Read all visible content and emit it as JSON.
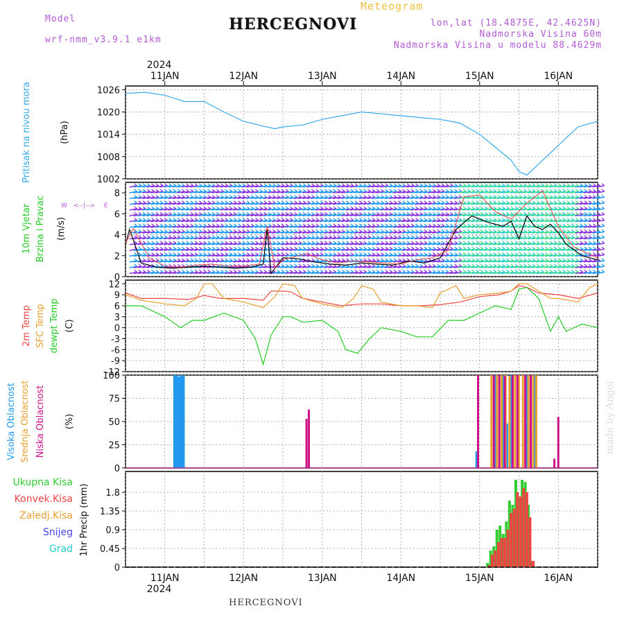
{
  "header": {
    "model_label": "Model",
    "model_name": "wrf-nmm_v3.9.1 e1km",
    "meteogram_label": "Meteogram",
    "title": "HERCEGNOVI",
    "lonlat": "lon,lat (18.4875E, 42.4625N)",
    "altitude": "Nadmorska Visina 60m",
    "model_altitude": "Nadmorska Visina u modelu 88.4629m",
    "bottom_title": "HERCEGNOVI",
    "signature": "made by Angel"
  },
  "time_axis": {
    "year": "2024",
    "labels": [
      "11JAN",
      "12JAN",
      "13JAN",
      "14JAN",
      "15JAN",
      "16JAN"
    ]
  },
  "colors": {
    "pressure": "#33aaee",
    "temp2m": "#ee4444",
    "sfc_temp": "#e8a030",
    "dewpt": "#22cc22",
    "cloud_high": "#2299ee",
    "cloud_mid": "#e8a030",
    "cloud_low": "#cc1188",
    "precip_total": "#33cc33",
    "precip_conv": "#ee4444",
    "snow": "#4444ee",
    "grad": "#22cccc",
    "wind_line": "#000000",
    "wind_gust": "#ee4444"
  },
  "panels": {
    "pressure": {
      "ylabel_a": "Pritisak na nivou mora",
      "ylabel_b": "(hPa)"
    },
    "wind": {
      "ylabel_a": "10m Vjetar",
      "ylabel_b": "Brzina i Pravac",
      "ylabel_c": "(m/s)"
    },
    "temp": {
      "ylabel_a": "2m Temp",
      "ylabel_b": "SFC Temp",
      "ylabel_c": "dewpt Temp",
      "ylabel_d": "(C)"
    },
    "cloud": {
      "ylabel_a": "Visoka Oblacnost",
      "ylabel_b": "Srednja Oblacnost",
      "ylabel_c": "Niska Oblacnost",
      "ylabel_d": "(%)"
    },
    "precip": {
      "ylabel": "1hr Precip (mm)",
      "legend": [
        "Ukupna Kisa",
        "Konvek.Kisa",
        "Zaledj.Kisa",
        "Snijeg",
        "Grad"
      ]
    }
  },
  "chart_data": [
    {
      "type": "line",
      "title": "",
      "ylabel": "Pritisak na nivou mora (hPa)",
      "ylim": [
        1002,
        1027
      ],
      "yticks": [
        1002,
        1008,
        1014,
        1020,
        1026
      ],
      "x_unit": "days since 10JAN 00UTC",
      "series": [
        {
          "x": [
            0.5,
            0.75,
            1.0,
            1.25,
            1.5,
            1.75,
            2.0,
            2.25,
            2.4,
            2.5,
            2.75,
            3.0,
            3.25,
            3.5,
            3.75,
            4.0,
            4.25,
            4.5,
            4.75,
            5.0,
            5.2,
            5.4,
            5.5,
            5.6,
            5.75,
            6.0,
            6.25,
            6.5
          ],
          "y": [
            1025,
            1025.3,
            1024.5,
            1022.8,
            1022.8,
            1020,
            1017.5,
            1016.2,
            1015.5,
            1016,
            1016.5,
            1018,
            1019,
            1020,
            1019.5,
            1019,
            1018.5,
            1018,
            1017,
            1014,
            1010.5,
            1007,
            1004,
            1003,
            1006,
            1011,
            1016,
            1017.5
          ]
        }
      ]
    },
    {
      "type": "line",
      "title": "",
      "ylabel": "10m Vjetar Brzina i Pravac (m/s)",
      "ylim": [
        0,
        9
      ],
      "yticks": [
        0,
        2,
        4,
        6,
        8
      ],
      "series": [
        {
          "x": [
            0.5,
            0.55,
            0.6,
            0.7,
            0.9,
            1.1,
            1.3,
            1.5,
            1.7,
            1.9,
            2.1,
            2.25,
            2.3,
            2.35,
            2.5,
            2.7,
            2.9,
            3.1,
            3.3,
            3.5,
            3.7,
            3.9,
            4.1,
            4.3,
            4.5,
            4.7,
            4.9,
            5.1,
            5.3,
            5.4,
            5.5,
            5.6,
            5.7,
            5.8,
            5.9,
            6.0,
            6.1,
            6.3,
            6.5
          ],
          "y": [
            3,
            4.5,
            3.5,
            1.3,
            0.9,
            0.8,
            0.9,
            1,
            0.9,
            0.8,
            0.9,
            1.2,
            4.5,
            0.3,
            1.8,
            1.7,
            1.4,
            1.2,
            1.1,
            1.3,
            1.2,
            1.1,
            1.5,
            1.3,
            1.8,
            4.5,
            5.8,
            5.2,
            4.8,
            5.3,
            3.6,
            5.8,
            4.8,
            4.5,
            5.0,
            4.2,
            3.1,
            2.0,
            1.6
          ]
        },
        {
          "x": [
            0.5,
            0.6,
            0.8,
            1.0,
            1.2,
            1.4,
            1.6,
            1.8,
            2.0,
            2.2,
            2.3,
            2.4,
            2.5,
            2.8,
            3.0,
            3.2,
            3.4,
            3.6,
            3.8,
            4.0,
            4.2,
            4.4,
            4.6,
            4.8,
            5.0,
            5.2,
            5.4,
            5.6,
            5.8,
            6.0,
            6.2,
            6.5
          ],
          "y": [
            3.2,
            4.6,
            1.8,
            1.0,
            0.9,
            1.1,
            1.2,
            1.0,
            1.0,
            1.2,
            4.8,
            0.8,
            1.6,
            2.2,
            1.6,
            1.3,
            1.5,
            1.4,
            1.3,
            1.2,
            1.6,
            1.8,
            2.5,
            7.6,
            7.8,
            6.2,
            5.5,
            7.0,
            8.2,
            4.8,
            2.8,
            1.8
          ]
        }
      ]
    },
    {
      "type": "line",
      "title": "",
      "ylabel": "Temp (C)",
      "ylim": [
        -12,
        13
      ],
      "yticks": [
        -12,
        -9,
        -6,
        -3,
        0,
        3,
        6,
        9,
        12
      ],
      "series": [
        {
          "name": "2m Temp",
          "x": [
            0.5,
            0.7,
            1.0,
            1.3,
            1.5,
            1.7,
            2.0,
            2.25,
            2.35,
            2.5,
            2.6,
            2.75,
            3.0,
            3.25,
            3.5,
            3.75,
            4.0,
            4.25,
            4.5,
            4.75,
            5.0,
            5.25,
            5.4,
            5.5,
            5.6,
            5.75,
            6.0,
            6.25,
            6.5
          ],
          "y": [
            9.5,
            8,
            8,
            7.7,
            8.8,
            8,
            8,
            7.5,
            10,
            10,
            9.8,
            8,
            7,
            6,
            6.5,
            6.5,
            6,
            6,
            6.3,
            7,
            8.5,
            9,
            10,
            11.5,
            11,
            9.5,
            9,
            8,
            9.5
          ]
        },
        {
          "name": "SFC Temp",
          "x": [
            0.5,
            0.7,
            1.0,
            1.25,
            1.4,
            1.5,
            1.6,
            1.75,
            2.0,
            2.25,
            2.4,
            2.5,
            2.65,
            2.75,
            3.0,
            3.25,
            3.4,
            3.5,
            3.65,
            3.75,
            4.0,
            4.2,
            4.4,
            4.5,
            4.7,
            4.8,
            5.0,
            5.25,
            5.4,
            5.5,
            5.6,
            5.75,
            5.9,
            6.0,
            6.25,
            6.4,
            6.5
          ],
          "y": [
            9,
            7.5,
            6.5,
            6,
            8,
            12,
            12,
            8,
            7,
            5.5,
            8.5,
            12,
            11.5,
            8,
            6.5,
            5.5,
            8,
            11.5,
            10.5,
            7,
            6,
            6,
            5.5,
            9.5,
            11.5,
            8,
            9,
            9.5,
            10,
            12,
            12,
            10,
            8,
            8,
            7,
            11,
            12
          ]
        },
        {
          "name": "dewpt Temp",
          "x": [
            0.5,
            0.7,
            1.0,
            1.2,
            1.35,
            1.5,
            1.75,
            2.0,
            2.15,
            2.25,
            2.35,
            2.5,
            2.6,
            2.75,
            3.0,
            3.2,
            3.3,
            3.45,
            3.6,
            3.75,
            4.0,
            4.2,
            4.4,
            4.6,
            4.8,
            5.0,
            5.2,
            5.4,
            5.5,
            5.6,
            5.75,
            5.9,
            6.0,
            6.1,
            6.3,
            6.5
          ],
          "y": [
            6,
            6,
            3,
            0,
            2,
            2,
            4,
            2,
            -3,
            -10,
            -2,
            3,
            3,
            1.5,
            2,
            -1,
            -6,
            -7,
            -3,
            0,
            -1,
            -2.5,
            -2.5,
            2,
            2,
            4,
            6,
            5,
            10.5,
            11,
            8,
            -1,
            3,
            -1,
            1,
            0
          ]
        }
      ]
    },
    {
      "type": "bar",
      "title": "",
      "ylabel": "Oblacnost (%)",
      "ylim": [
        0,
        100
      ],
      "yticks": [
        0,
        25,
        50,
        75,
        100
      ],
      "series": [
        {
          "name": "Visoka Oblacnost",
          "x": [
            1.12,
            1.14,
            1.16,
            1.18,
            1.2,
            1.22,
            1.24,
            4.96,
            5.2,
            5.3,
            5.35,
            5.4,
            5.5,
            5.6,
            5.7
          ],
          "values": [
            100,
            100,
            99,
            98,
            100,
            99,
            100,
            18,
            100,
            99,
            48,
            100,
            100,
            100,
            100
          ]
        },
        {
          "name": "Srednja Oblacnost",
          "x": [
            5.15,
            5.22,
            5.28,
            5.33,
            5.38,
            5.45,
            5.5,
            5.55,
            5.62,
            5.68,
            5.72
          ],
          "values": [
            100,
            100,
            100,
            100,
            99,
            100,
            100,
            100,
            100,
            100,
            100
          ]
        },
        {
          "name": "Niska Oblacnost",
          "x": [
            2.8,
            2.83,
            4.98,
            5.18,
            5.25,
            5.32,
            5.42,
            5.48,
            5.58,
            5.65,
            5.95,
            6.0
          ],
          "values": [
            53,
            63,
            100,
            100,
            100,
            99,
            100,
            100,
            100,
            100,
            10,
            55
          ]
        }
      ]
    },
    {
      "type": "bar",
      "title": "",
      "ylabel": "1hr Precip (mm)",
      "ylim": [
        0,
        2.3
      ],
      "yticks": [
        0,
        0.45,
        0.9,
        1.35,
        1.8
      ],
      "series": [
        {
          "name": "Ukupna Kisa",
          "x": [
            5.1,
            5.14,
            5.18,
            5.22,
            5.26,
            5.3,
            5.34,
            5.38,
            5.42,
            5.46,
            5.5,
            5.54,
            5.58,
            5.62,
            5.66
          ],
          "values": [
            0.1,
            0.4,
            0.5,
            0.9,
            1.0,
            0.8,
            1.1,
            1.6,
            1.5,
            2.1,
            1.7,
            2.1,
            2.05,
            1.5,
            0.15
          ]
        },
        {
          "name": "Konvek.Kisa",
          "x": [
            5.12,
            5.16,
            5.2,
            5.24,
            5.28,
            5.32,
            5.36,
            5.4,
            5.44,
            5.48,
            5.52,
            5.56,
            5.6,
            5.64,
            5.68
          ],
          "values": [
            0.05,
            0.3,
            0.4,
            0.6,
            0.7,
            0.7,
            0.9,
            1.3,
            1.4,
            1.8,
            1.7,
            1.9,
            1.8,
            1.2,
            0.15
          ]
        }
      ]
    }
  ]
}
